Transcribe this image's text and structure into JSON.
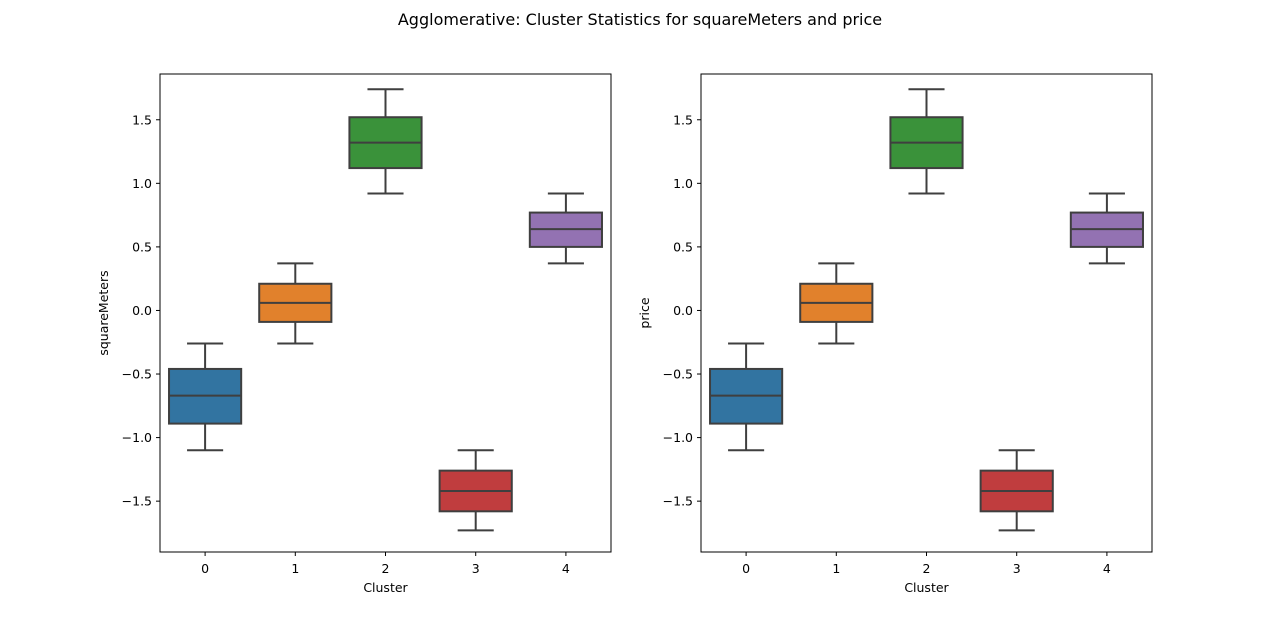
{
  "figure": {
    "suptitle": "Agglomerative: Cluster Statistics for squareMeters and price"
  },
  "chart_data": [
    {
      "type": "box",
      "title": "",
      "xlabel": "Cluster",
      "ylabel": "squareMeters",
      "categories": [
        "0",
        "1",
        "2",
        "3",
        "4"
      ],
      "ylim": [
        -1.9,
        1.86
      ],
      "yticks": [
        -1.5,
        -1.0,
        -0.5,
        0.0,
        0.5,
        1.0,
        1.5
      ],
      "ytick_labels": [
        "−1.5",
        "−1.0",
        "−0.5",
        "0.0",
        "0.5",
        "1.0",
        "1.5"
      ],
      "grid": false,
      "boxes": [
        {
          "cluster": "0",
          "whisker_low": -1.1,
          "q1": -0.89,
          "median": -0.67,
          "q3": -0.46,
          "whisker_high": -0.26,
          "color": "#3274a1"
        },
        {
          "cluster": "1",
          "whisker_low": -0.26,
          "q1": -0.09,
          "median": 0.06,
          "q3": 0.21,
          "whisker_high": 0.37,
          "color": "#e1812c"
        },
        {
          "cluster": "2",
          "whisker_low": 0.92,
          "q1": 1.12,
          "median": 1.32,
          "q3": 1.52,
          "whisker_high": 1.74,
          "color": "#3a923a"
        },
        {
          "cluster": "3",
          "whisker_low": -1.73,
          "q1": -1.58,
          "median": -1.42,
          "q3": -1.26,
          "whisker_high": -1.1,
          "color": "#c03d3e"
        },
        {
          "cluster": "4",
          "whisker_low": 0.37,
          "q1": 0.5,
          "median": 0.64,
          "q3": 0.77,
          "whisker_high": 0.92,
          "color": "#9372b2"
        }
      ]
    },
    {
      "type": "box",
      "title": "",
      "xlabel": "Cluster",
      "ylabel": "price",
      "categories": [
        "0",
        "1",
        "2",
        "3",
        "4"
      ],
      "ylim": [
        -1.9,
        1.86
      ],
      "yticks": [
        -1.5,
        -1.0,
        -0.5,
        0.0,
        0.5,
        1.0,
        1.5
      ],
      "ytick_labels": [
        "−1.5",
        "−1.0",
        "−0.5",
        "0.0",
        "0.5",
        "1.0",
        "1.5"
      ],
      "grid": false,
      "boxes": [
        {
          "cluster": "0",
          "whisker_low": -1.1,
          "q1": -0.89,
          "median": -0.67,
          "q3": -0.46,
          "whisker_high": -0.26,
          "color": "#3274a1"
        },
        {
          "cluster": "1",
          "whisker_low": -0.26,
          "q1": -0.09,
          "median": 0.06,
          "q3": 0.21,
          "whisker_high": 0.37,
          "color": "#e1812c"
        },
        {
          "cluster": "2",
          "whisker_low": 0.92,
          "q1": 1.12,
          "median": 1.32,
          "q3": 1.52,
          "whisker_high": 1.74,
          "color": "#3a923a"
        },
        {
          "cluster": "3",
          "whisker_low": -1.73,
          "q1": -1.58,
          "median": -1.42,
          "q3": -1.26,
          "whisker_high": -1.1,
          "color": "#c03d3e"
        },
        {
          "cluster": "4",
          "whisker_low": 0.37,
          "q1": 0.5,
          "median": 0.64,
          "q3": 0.77,
          "whisker_high": 0.92,
          "color": "#9372b2"
        }
      ]
    }
  ]
}
